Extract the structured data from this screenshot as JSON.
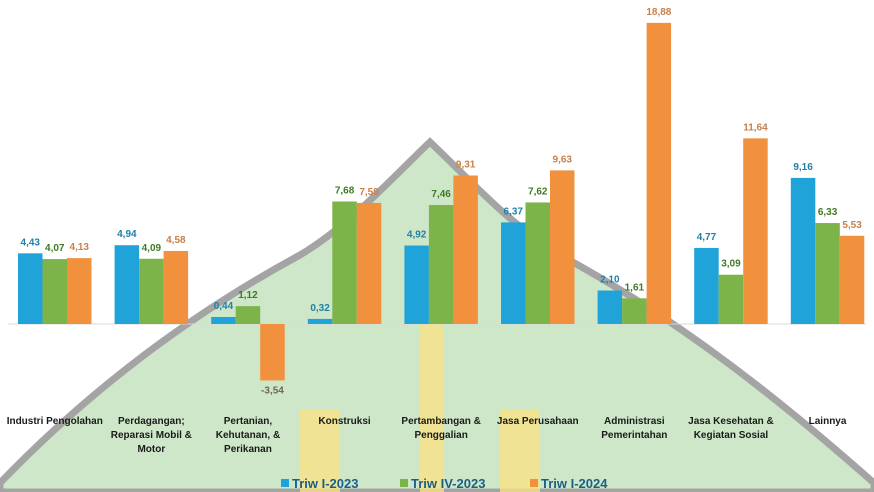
{
  "chart_data": {
    "type": "bar",
    "title": "",
    "xlabel": "",
    "ylabel": "",
    "categories": [
      [
        "Industri Pengolahan"
      ],
      [
        "Perdagangan;",
        "Reparasi Mobil &",
        "Motor"
      ],
      [
        "Pertanian,",
        "Kehutanan, &",
        "Perikanan"
      ],
      [
        "Konstruksi"
      ],
      [
        "Pertambangan &",
        "Penggalian"
      ],
      [
        "Jasa Perusahaan"
      ],
      [
        "Administrasi",
        "Pemerintahan"
      ],
      [
        "Jasa Kesehatan &",
        "Kegiatan Sosial"
      ],
      [
        "Lainnya"
      ]
    ],
    "series": [
      {
        "name": "Triw I-2023",
        "color": "#1fa3d9",
        "values": [
          4.43,
          4.94,
          0.44,
          0.32,
          4.92,
          6.37,
          2.1,
          4.77,
          9.16
        ],
        "labels": [
          "4,43",
          "4,94",
          "0,44",
          "0,32",
          "4,92",
          "6,37",
          "2,10",
          "4,77",
          "9,16"
        ]
      },
      {
        "name": "Triw IV-2023",
        "color": "#7db44a",
        "values": [
          4.07,
          4.09,
          1.12,
          7.68,
          7.46,
          7.62,
          1.61,
          3.09,
          6.33
        ],
        "labels": [
          "4,07",
          "4,09",
          "1,12",
          "7,68",
          "7,46",
          "7,62",
          "1,61",
          "3,09",
          "6,33"
        ]
      },
      {
        "name": "Triw I-2024",
        "color": "#f2913d",
        "values": [
          4.13,
          4.58,
          -3.54,
          7.59,
          9.31,
          9.63,
          18.88,
          11.64,
          5.53
        ],
        "labels": [
          "4,13",
          "4,58",
          "-3,54",
          "7,59",
          "9,31",
          "9,63",
          "18,88",
          "11,64",
          "5,53"
        ]
      }
    ],
    "label_colors": {
      "Triw I-2023": "#1f7fa8",
      "Triw IV-2023": "#3f7a24",
      "Triw I-2024": "#c8804a",
      "negative": "#6f6a4a"
    },
    "legend_position": "bottom",
    "grid": false
  }
}
